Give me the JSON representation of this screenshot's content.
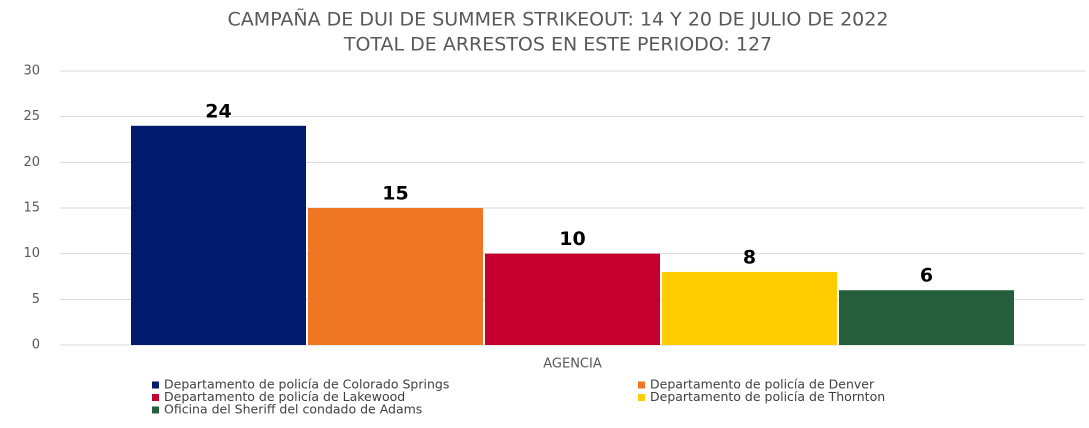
{
  "chart_data": {
    "type": "bar",
    "title": "CAMPAÑA DE DUI DE SUMMER STRIKEOUT: 14 Y 20 DE JULIO DE 2022",
    "subtitle": "TOTAL DE ARRESTOS EN ESTE PERIODO: 127",
    "categories": [
      "AGENCIA"
    ],
    "series": [
      {
        "name": "Departamento de policía de Colorado Springs",
        "color": "#001b6e",
        "values": [
          24
        ]
      },
      {
        "name": "Departamento de policía de Denver",
        "color": "#ef7622",
        "values": [
          15
        ]
      },
      {
        "name": "Departamento de policía de Lakewood",
        "color": "#c5002e",
        "values": [
          10
        ]
      },
      {
        "name": "Departamento de policía de Thornton",
        "color": "#ffcc00",
        "values": [
          8
        ]
      },
      {
        "name": "Oficina del Sheriff del condado de Adams",
        "color": "#245e3b",
        "values": [
          6
        ]
      }
    ],
    "ylim": [
      0,
      30
    ],
    "yticks": [
      0,
      5,
      10,
      15,
      20,
      25,
      30
    ],
    "grid": true,
    "legend": "bottom",
    "data_labels": true
  }
}
